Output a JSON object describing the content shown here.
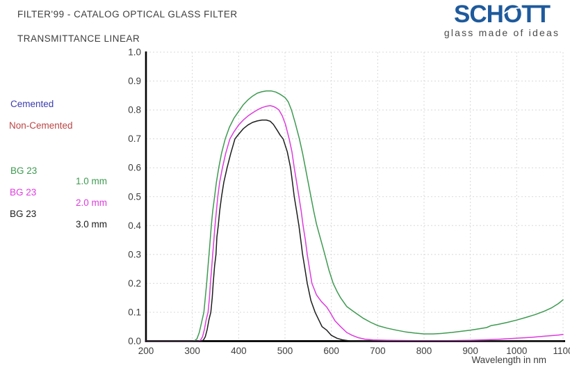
{
  "header": {
    "title": "FILTER'99 - CATALOG OPTICAL GLASS FILTER",
    "subtitle": "TRANSMITTANCE LINEAR"
  },
  "logo": {
    "text": "SCHOTT",
    "text_parts": [
      "SCH",
      "O",
      "TT"
    ],
    "tagline": "glass made of ideas",
    "color": "#1e5a9c",
    "tagline_color": "#4a4a4a"
  },
  "legend": {
    "cemented": {
      "label": "Cemented",
      "color": "#3a3ab0"
    },
    "non_cemented": {
      "label": "Non-Cemented",
      "color": "#bb4545"
    },
    "entries": [
      {
        "glass": "BG 23",
        "thickness": "1.0 mm",
        "color": "#3d9a50"
      },
      {
        "glass": "BG 23",
        "thickness": "2.0 mm",
        "color": "#dd3cdd"
      },
      {
        "glass": "BG 23",
        "thickness": "3.0 mm",
        "color": "#1c1c1c"
      }
    ]
  },
  "chart_data": {
    "type": "line",
    "title": "TRANSMITTANCE LINEAR",
    "xlabel": "Wavelength in nm",
    "ylabel": "",
    "xlim": [
      200,
      1100
    ],
    "ylim": [
      0,
      1
    ],
    "x_ticks": [
      200,
      300,
      400,
      500,
      600,
      700,
      800,
      900,
      1000,
      1100
    ],
    "y_ticks": [
      0.0,
      0.1,
      0.2,
      0.3,
      0.4,
      0.5,
      0.6,
      0.7,
      0.8,
      0.9,
      1.0
    ],
    "grid": true,
    "grid_color": "#d8d8d8",
    "axis_color": "#000000",
    "legend_position": "left-outside",
    "series": [
      {
        "name": "BG 23 1.0 mm",
        "color": "#3d9a50",
        "points": [
          [
            200,
            0
          ],
          [
            300,
            0
          ],
          [
            305,
            0.002
          ],
          [
            310,
            0.008
          ],
          [
            315,
            0.03
          ],
          [
            320,
            0.065
          ],
          [
            325,
            0.1
          ],
          [
            328,
            0.15
          ],
          [
            331,
            0.2
          ],
          [
            334,
            0.26
          ],
          [
            336,
            0.3
          ],
          [
            339,
            0.36
          ],
          [
            341,
            0.4
          ],
          [
            344,
            0.45
          ],
          [
            348,
            0.5
          ],
          [
            352,
            0.55
          ],
          [
            357,
            0.6
          ],
          [
            363,
            0.65
          ],
          [
            371,
            0.7
          ],
          [
            380,
            0.74
          ],
          [
            390,
            0.772
          ],
          [
            400,
            0.795
          ],
          [
            410,
            0.818
          ],
          [
            420,
            0.835
          ],
          [
            430,
            0.848
          ],
          [
            440,
            0.858
          ],
          [
            450,
            0.863
          ],
          [
            460,
            0.866
          ],
          [
            470,
            0.866
          ],
          [
            480,
            0.862
          ],
          [
            490,
            0.854
          ],
          [
            500,
            0.843
          ],
          [
            507,
            0.828
          ],
          [
            514,
            0.8
          ],
          [
            522,
            0.755
          ],
          [
            531,
            0.7
          ],
          [
            538,
            0.65
          ],
          [
            544,
            0.6
          ],
          [
            550,
            0.55
          ],
          [
            556,
            0.5
          ],
          [
            562,
            0.45
          ],
          [
            568,
            0.405
          ],
          [
            573,
            0.375
          ],
          [
            580,
            0.335
          ],
          [
            586,
            0.3
          ],
          [
            595,
            0.245
          ],
          [
            604,
            0.2
          ],
          [
            613,
            0.17
          ],
          [
            620,
            0.15
          ],
          [
            633,
            0.12
          ],
          [
            650,
            0.1
          ],
          [
            668,
            0.08
          ],
          [
            685,
            0.065
          ],
          [
            700,
            0.054
          ],
          [
            720,
            0.045
          ],
          [
            740,
            0.038
          ],
          [
            760,
            0.032
          ],
          [
            780,
            0.028
          ],
          [
            800,
            0.025
          ],
          [
            820,
            0.025
          ],
          [
            840,
            0.027
          ],
          [
            860,
            0.03
          ],
          [
            880,
            0.034
          ],
          [
            900,
            0.038
          ],
          [
            920,
            0.043
          ],
          [
            935,
            0.047
          ],
          [
            945,
            0.054
          ],
          [
            960,
            0.058
          ],
          [
            980,
            0.065
          ],
          [
            1000,
            0.073
          ],
          [
            1020,
            0.082
          ],
          [
            1040,
            0.092
          ],
          [
            1060,
            0.104
          ],
          [
            1075,
            0.115
          ],
          [
            1090,
            0.13
          ],
          [
            1100,
            0.143
          ]
        ]
      },
      {
        "name": "BG 23 2.0 mm",
        "color": "#dd3cdd",
        "points": [
          [
            200,
            0
          ],
          [
            313,
            0
          ],
          [
            318,
            0.004
          ],
          [
            322,
            0.015
          ],
          [
            326,
            0.04
          ],
          [
            330,
            0.075
          ],
          [
            334,
            0.1
          ],
          [
            337,
            0.15
          ],
          [
            339,
            0.2
          ],
          [
            342,
            0.26
          ],
          [
            344,
            0.3
          ],
          [
            347,
            0.36
          ],
          [
            349,
            0.4
          ],
          [
            352,
            0.45
          ],
          [
            355,
            0.5
          ],
          [
            359,
            0.55
          ],
          [
            365,
            0.6
          ],
          [
            372,
            0.65
          ],
          [
            381,
            0.7
          ],
          [
            390,
            0.725
          ],
          [
            400,
            0.748
          ],
          [
            410,
            0.765
          ],
          [
            420,
            0.779
          ],
          [
            430,
            0.79
          ],
          [
            440,
            0.8
          ],
          [
            450,
            0.808
          ],
          [
            460,
            0.813
          ],
          [
            468,
            0.815
          ],
          [
            475,
            0.812
          ],
          [
            481,
            0.807
          ],
          [
            487,
            0.8
          ],
          [
            494,
            0.78
          ],
          [
            501,
            0.75
          ],
          [
            509,
            0.7
          ],
          [
            515,
            0.655
          ],
          [
            520,
            0.6
          ],
          [
            525,
            0.55
          ],
          [
            530,
            0.5
          ],
          [
            535,
            0.45
          ],
          [
            539,
            0.4
          ],
          [
            544,
            0.35
          ],
          [
            548,
            0.3
          ],
          [
            553,
            0.25
          ],
          [
            558,
            0.2
          ],
          [
            568,
            0.16
          ],
          [
            578,
            0.138
          ],
          [
            590,
            0.118
          ],
          [
            597,
            0.1
          ],
          [
            608,
            0.07
          ],
          [
            620,
            0.05
          ],
          [
            633,
            0.03
          ],
          [
            645,
            0.02
          ],
          [
            658,
            0.012
          ],
          [
            672,
            0.007
          ],
          [
            690,
            0.004
          ],
          [
            720,
            0.003
          ],
          [
            780,
            0.002
          ],
          [
            850,
            0.002
          ],
          [
            900,
            0.003
          ],
          [
            940,
            0.005
          ],
          [
            965,
            0.007
          ],
          [
            1000,
            0.01
          ],
          [
            1030,
            0.013
          ],
          [
            1060,
            0.017
          ],
          [
            1090,
            0.021
          ],
          [
            1100,
            0.023
          ]
        ]
      },
      {
        "name": "BG 23 3.0 mm",
        "color": "#1c1c1c",
        "points": [
          [
            200,
            0
          ],
          [
            320,
            0
          ],
          [
            324,
            0.004
          ],
          [
            328,
            0.015
          ],
          [
            332,
            0.04
          ],
          [
            336,
            0.075
          ],
          [
            340,
            0.1
          ],
          [
            343,
            0.15
          ],
          [
            345,
            0.2
          ],
          [
            348,
            0.26
          ],
          [
            351,
            0.3
          ],
          [
            353,
            0.36
          ],
          [
            356,
            0.4
          ],
          [
            359,
            0.45
          ],
          [
            363,
            0.5
          ],
          [
            368,
            0.55
          ],
          [
            375,
            0.6
          ],
          [
            383,
            0.65
          ],
          [
            392,
            0.7
          ],
          [
            400,
            0.716
          ],
          [
            410,
            0.735
          ],
          [
            420,
            0.748
          ],
          [
            430,
            0.757
          ],
          [
            440,
            0.762
          ],
          [
            450,
            0.765
          ],
          [
            460,
            0.765
          ],
          [
            468,
            0.761
          ],
          [
            475,
            0.75
          ],
          [
            483,
            0.73
          ],
          [
            490,
            0.712
          ],
          [
            496,
            0.7
          ],
          [
            505,
            0.655
          ],
          [
            512,
            0.6
          ],
          [
            516,
            0.55
          ],
          [
            520,
            0.5
          ],
          [
            525,
            0.45
          ],
          [
            530,
            0.4
          ],
          [
            534,
            0.35
          ],
          [
            538,
            0.3
          ],
          [
            543,
            0.25
          ],
          [
            548,
            0.2
          ],
          [
            556,
            0.14
          ],
          [
            565,
            0.1
          ],
          [
            580,
            0.05
          ],
          [
            590,
            0.038
          ],
          [
            600,
            0.02
          ],
          [
            612,
            0.01
          ],
          [
            625,
            0.004
          ],
          [
            640,
            0.001
          ],
          [
            655,
            0
          ],
          [
            750,
            0
          ],
          [
            850,
            0
          ],
          [
            950,
            0
          ],
          [
            1050,
            0
          ],
          [
            1100,
            0
          ]
        ]
      }
    ]
  }
}
